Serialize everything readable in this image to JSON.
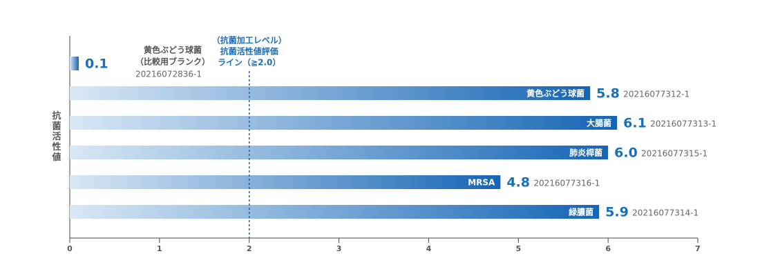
{
  "chart_data": {
    "type": "bar",
    "orientation": "horizontal",
    "y_label": "抗菌活性値",
    "categories": [
      "黄色ぶどう球菌",
      "黄色ぶどう球菌",
      "大腸菌",
      "肺炎桿菌",
      "MRSA",
      "緑膿菌"
    ],
    "category_sublabels": [
      "（比較用ブランク）",
      null,
      null,
      null,
      null,
      null
    ],
    "codes": [
      "20216072836-1",
      "20216077312-1",
      "20216077313-1",
      "20216077315-1",
      "20216077316-1",
      "20216077314-1"
    ],
    "values": [
      0.1,
      5.8,
      6.1,
      6.0,
      4.8,
      5.9
    ],
    "value_labels": [
      "0.1",
      "5.8",
      "6.1",
      "6.0",
      "4.8",
      "5.9"
    ],
    "color_start": "#d9e8f5",
    "color_end": "#1565b5",
    "value_color": "#1a6fb8",
    "reference_line": {
      "value": 2,
      "label_lines": [
        "（抗菌加工レベル）",
        "抗菌活性値評価",
        "ライン（≧2.0）"
      ]
    },
    "xlim": [
      0,
      7
    ],
    "xticks": [
      0,
      1,
      2,
      3,
      4,
      5,
      6,
      7
    ]
  }
}
